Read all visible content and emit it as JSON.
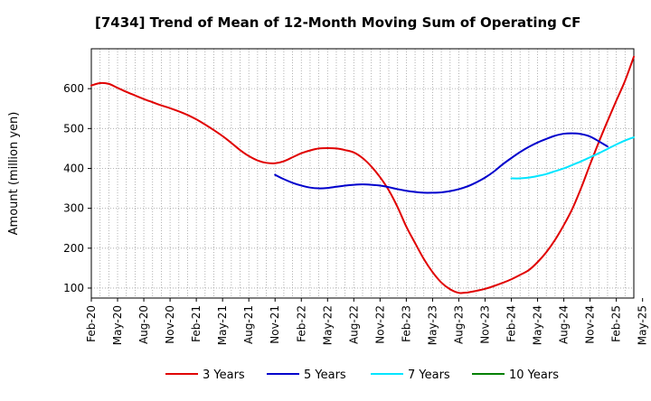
{
  "chart_data": {
    "type": "line",
    "title": "[7434]  Trend of Mean of 12-Month Moving Sum of Operating CF",
    "xlabel": "",
    "ylabel": "Amount (million yen)",
    "ylim": [
      75,
      700
    ],
    "yticks": [
      100,
      200,
      300,
      400,
      500,
      600
    ],
    "grid": true,
    "legend_position": "bottom",
    "x_tick_labels": [
      "Feb-20",
      "May-20",
      "Aug-20",
      "Nov-20",
      "Feb-21",
      "May-21",
      "Aug-21",
      "Nov-21",
      "Feb-22",
      "May-22",
      "Aug-22",
      "Nov-22",
      "Feb-23",
      "May-23",
      "Aug-23",
      "Nov-23",
      "Feb-24",
      "May-24",
      "Aug-24",
      "Nov-24",
      "Feb-25",
      "May-25"
    ],
    "x_months": 63,
    "series": [
      {
        "name": "3 Years",
        "color": "#e00000",
        "start_month": 0,
        "values": [
          608,
          614,
          612,
          602,
          592,
          583,
          574,
          566,
          558,
          551,
          543,
          534,
          523,
          510,
          496,
          481,
          464,
          446,
          431,
          420,
          414,
          413,
          418,
          428,
          438,
          445,
          450,
          451,
          450,
          446,
          440,
          426,
          405,
          378,
          345,
          303,
          254,
          213,
          173,
          140,
          114,
          97,
          88,
          89,
          93,
          98,
          105,
          113,
          122,
          133,
          145,
          165,
          190,
          221,
          258,
          300,
          352,
          410,
          466,
          519,
          570,
          620,
          680
        ]
      },
      {
        "name": "5 Years",
        "color": "#0000cc",
        "start_month": 21,
        "values": [
          384,
          373,
          364,
          357,
          352,
          350,
          351,
          354,
          357,
          359,
          360,
          359,
          357,
          353,
          348,
          344,
          341,
          339,
          339,
          340,
          343,
          348,
          355,
          365,
          377,
          392,
          410,
          426,
          441,
          454,
          465,
          474,
          482,
          487,
          488,
          486,
          480,
          468,
          455
        ]
      },
      {
        "name": "7 Years",
        "color": "#00e5ff",
        "start_month": 48,
        "values": [
          375,
          375,
          377,
          381,
          386,
          393,
          400,
          409,
          418,
          428,
          438,
          449,
          460,
          470,
          478
        ]
      },
      {
        "name": "10 Years",
        "color": "#008000",
        "start_month": 0,
        "values": []
      }
    ]
  }
}
